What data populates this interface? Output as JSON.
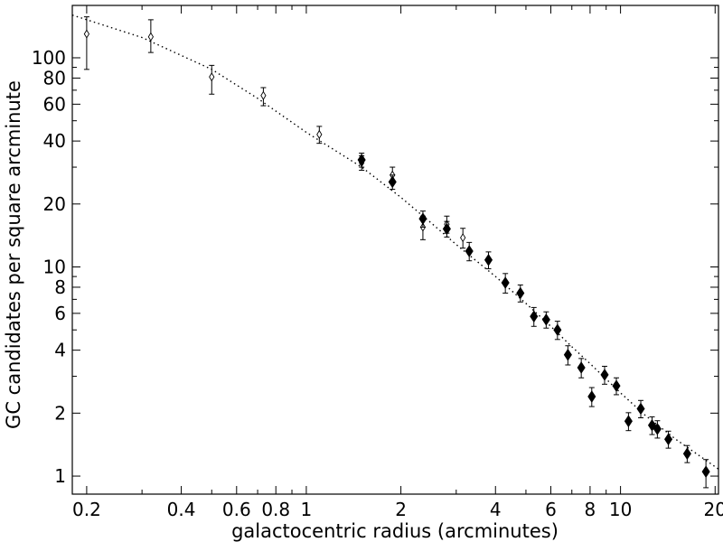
{
  "chart_data": {
    "type": "scatter",
    "xlabel": "galactocentric radius (arcminutes)",
    "ylabel": "GC candidates per square arcminute",
    "xscale": "log",
    "yscale": "log",
    "xlim": [
      0.18,
      20.5
    ],
    "ylim": [
      0.82,
      178
    ],
    "grid": false,
    "xticks_major": [
      0.2,
      0.4,
      0.6,
      0.8,
      1,
      2,
      4,
      6,
      8,
      10,
      20
    ],
    "xtick_labels": [
      "0.2",
      "0.4",
      "0.6",
      "0.8",
      "1",
      "2",
      "4",
      "6",
      "8",
      "10",
      "20"
    ],
    "yticks_major": [
      1,
      2,
      4,
      6,
      8,
      10,
      20,
      40,
      60,
      80,
      100
    ],
    "ytick_labels": [
      "1",
      "2",
      "4",
      "6",
      "8",
      "10",
      "20",
      "40",
      "60",
      "80",
      "100"
    ],
    "fit": {
      "style": "dotted",
      "x": [
        0.18,
        0.3,
        0.5,
        0.7,
        1.0,
        1.5,
        2.0,
        2.5,
        3.0,
        4.0,
        5.0,
        6.0,
        7.0,
        8.0,
        10.0,
        12.0,
        15.0,
        20.5
      ],
      "y": [
        160,
        125,
        88,
        64,
        44,
        30,
        21.5,
        16.2,
        12.8,
        9.0,
        6.7,
        5.2,
        4.15,
        3.45,
        2.5,
        1.95,
        1.5,
        1.08
      ]
    },
    "series": [
      {
        "marker": "open-diamond",
        "points": [
          {
            "x": 0.2,
            "y": 130,
            "err_lo": 42,
            "err_hi": 27
          },
          {
            "x": 0.32,
            "y": 126,
            "err_lo": 20,
            "err_hi": 26
          },
          {
            "x": 0.5,
            "y": 81,
            "err_lo": 14,
            "err_hi": 11
          },
          {
            "x": 0.73,
            "y": 66,
            "err_lo": 7,
            "err_hi": 6
          },
          {
            "x": 1.1,
            "y": 43,
            "err_lo": 4,
            "err_hi": 4
          },
          {
            "x": 1.5,
            "y": 31.5,
            "err_lo": 2.5,
            "err_hi": 2.5
          },
          {
            "x": 1.88,
            "y": 27.5,
            "err_lo": 2.5,
            "err_hi": 2.5
          },
          {
            "x": 2.35,
            "y": 15.5,
            "err_lo": 2.0,
            "err_hi": 2.0
          },
          {
            "x": 2.8,
            "y": 16.0,
            "err_lo": 1.5,
            "err_hi": 1.5
          },
          {
            "x": 3.15,
            "y": 13.8,
            "err_lo": 1.5,
            "err_hi": 1.5
          }
        ]
      },
      {
        "marker": "filled-diamond",
        "points": [
          {
            "x": 1.5,
            "y": 32.5,
            "err_lo": 2.5,
            "err_hi": 2.5
          },
          {
            "x": 1.88,
            "y": 25.5,
            "err_lo": 2.0,
            "err_hi": 2.0
          },
          {
            "x": 2.35,
            "y": 17.0,
            "err_lo": 1.5,
            "err_hi": 1.5
          },
          {
            "x": 2.8,
            "y": 15.2,
            "err_lo": 1.3,
            "err_hi": 1.3
          },
          {
            "x": 3.3,
            "y": 11.9,
            "err_lo": 1.2,
            "err_hi": 1.2
          },
          {
            "x": 3.8,
            "y": 10.8,
            "err_lo": 1.0,
            "err_hi": 1.0
          },
          {
            "x": 4.3,
            "y": 8.4,
            "err_lo": 0.9,
            "err_hi": 0.9
          },
          {
            "x": 4.8,
            "y": 7.5,
            "err_lo": 0.7,
            "err_hi": 0.7
          },
          {
            "x": 5.3,
            "y": 5.8,
            "err_lo": 0.6,
            "err_hi": 0.6
          },
          {
            "x": 5.8,
            "y": 5.6,
            "err_lo": 0.5,
            "err_hi": 0.5
          },
          {
            "x": 6.3,
            "y": 5.0,
            "err_lo": 0.5,
            "err_hi": 0.5
          },
          {
            "x": 6.8,
            "y": 3.8,
            "err_lo": 0.4,
            "err_hi": 0.4
          },
          {
            "x": 7.5,
            "y": 3.3,
            "err_lo": 0.35,
            "err_hi": 0.35
          },
          {
            "x": 8.1,
            "y": 2.4,
            "err_lo": 0.25,
            "err_hi": 0.25
          },
          {
            "x": 8.9,
            "y": 3.05,
            "err_lo": 0.3,
            "err_hi": 0.3
          },
          {
            "x": 9.7,
            "y": 2.7,
            "err_lo": 0.25,
            "err_hi": 0.25
          },
          {
            "x": 10.6,
            "y": 1.83,
            "err_lo": 0.18,
            "err_hi": 0.18
          },
          {
            "x": 11.6,
            "y": 2.1,
            "err_lo": 0.2,
            "err_hi": 0.2
          },
          {
            "x": 12.6,
            "y": 1.75,
            "err_lo": 0.17,
            "err_hi": 0.17
          },
          {
            "x": 13.1,
            "y": 1.68,
            "err_lo": 0.16,
            "err_hi": 0.16
          },
          {
            "x": 14.2,
            "y": 1.5,
            "err_lo": 0.14,
            "err_hi": 0.14
          },
          {
            "x": 16.3,
            "y": 1.28,
            "err_lo": 0.12,
            "err_hi": 0.12
          },
          {
            "x": 18.7,
            "y": 1.05,
            "err_lo": 0.17,
            "err_hi": 0.15
          }
        ]
      }
    ]
  }
}
